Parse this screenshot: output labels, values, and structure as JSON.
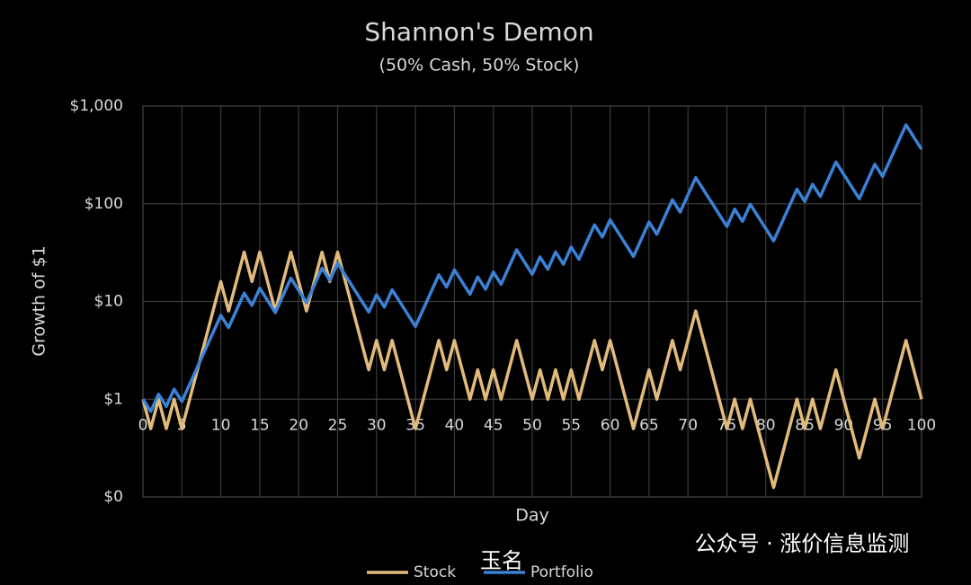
{
  "chart_data": {
    "type": "line",
    "title": "Shannon's Demon",
    "subtitle": "(50% Cash, 50% Stock)",
    "x_label": "Day",
    "y_label": "Growth of $1",
    "x": [
      0,
      1,
      2,
      3,
      4,
      5,
      6,
      7,
      8,
      9,
      10,
      11,
      12,
      13,
      14,
      15,
      16,
      17,
      18,
      19,
      20,
      21,
      22,
      23,
      24,
      25,
      26,
      27,
      28,
      29,
      30,
      31,
      32,
      33,
      34,
      35,
      36,
      37,
      38,
      39,
      40,
      41,
      42,
      43,
      44,
      45,
      46,
      47,
      48,
      49,
      50,
      51,
      52,
      53,
      54,
      55,
      56,
      57,
      58,
      59,
      60,
      61,
      62,
      63,
      64,
      65,
      66,
      67,
      68,
      69,
      70,
      71,
      72,
      73,
      74,
      75,
      76,
      77,
      78,
      79,
      80,
      81,
      82,
      83,
      84,
      85,
      86,
      87,
      88,
      89,
      90,
      91,
      92,
      93,
      94,
      95,
      96,
      97,
      98,
      99,
      100
    ],
    "series": [
      {
        "name": "Stock",
        "color": "#e2bb7c",
        "values": [
          1,
          0.5,
          1,
          0.5,
          1,
          0.5,
          1,
          2,
          4,
          8,
          16,
          8,
          16,
          32,
          16,
          32,
          16,
          8,
          16,
          32,
          16,
          8,
          16,
          32,
          16,
          32,
          16,
          8,
          4,
          2,
          4,
          2,
          4,
          2,
          1,
          0.5,
          1,
          2,
          4,
          2,
          4,
          2,
          1,
          2,
          1,
          2,
          1,
          2,
          4,
          2,
          1,
          2,
          1,
          2,
          1,
          2,
          1,
          2,
          4,
          2,
          4,
          2,
          1,
          0.5,
          1,
          2,
          1,
          2,
          4,
          2,
          4,
          8,
          4,
          2,
          1,
          0.5,
          1,
          0.5,
          1,
          0.5,
          0.25,
          0.125,
          0.25,
          0.5,
          1,
          0.5,
          1,
          0.5,
          1,
          2,
          1,
          0.5,
          0.25,
          0.5,
          1,
          0.5,
          1,
          2,
          4,
          2,
          1
        ]
      },
      {
        "name": "Portfolio",
        "color": "#3b82d6",
        "values": [
          1,
          0.75,
          1.125,
          0.844,
          1.266,
          0.949,
          1.424,
          2.136,
          3.204,
          4.805,
          7.208,
          5.406,
          8.109,
          12.16,
          9.122,
          13.68,
          10.26,
          7.697,
          11.55,
          17.32,
          12.99,
          9.742,
          14.61,
          21.92,
          16.44,
          24.66,
          18.5,
          13.87,
          10.4,
          7.803,
          11.7,
          8.778,
          13.17,
          9.875,
          7.406,
          5.555,
          8.332,
          12.5,
          18.75,
          14.06,
          21.09,
          15.82,
          11.86,
          17.8,
          13.35,
          20.02,
          15.02,
          22.52,
          33.79,
          25.34,
          19,
          28.51,
          21.38,
          32.07,
          24.05,
          36.08,
          27.06,
          40.59,
          60.88,
          45.66,
          68.49,
          51.37,
          38.53,
          28.89,
          43.34,
          65.01,
          48.76,
          73.13,
          109.7,
          82.28,
          123.4,
          185.1,
          138.8,
          104.1,
          78.1,
          58.58,
          87.86,
          65.9,
          98.85,
          74.14,
          55.6,
          41.7,
          62.55,
          93.83,
          140.7,
          105.6,
          158.3,
          118.8,
          178.1,
          267.2,
          200.4,
          150.3,
          112.7,
          169.1,
          253.6,
          190.2,
          285.3,
          428,
          642,
          481.5,
          361.1
        ]
      }
    ],
    "xlim": [
      0,
      100
    ],
    "xticks": [
      0,
      5,
      10,
      15,
      20,
      25,
      30,
      35,
      40,
      45,
      50,
      55,
      60,
      65,
      70,
      75,
      80,
      85,
      90,
      95,
      100
    ],
    "ylim": [
      0.1,
      1000
    ],
    "ylog": true,
    "yticks": [
      {
        "value": 0.1,
        "label": "$0"
      },
      {
        "value": 1,
        "label": "$1"
      },
      {
        "value": 10,
        "label": "$10"
      },
      {
        "value": 100,
        "label": "$100"
      },
      {
        "value": 1000,
        "label": "$1,000"
      }
    ],
    "grid": true,
    "legend": "bottom",
    "watermarks": [
      "玉名",
      "公众号 · 涨价信息监测"
    ]
  }
}
